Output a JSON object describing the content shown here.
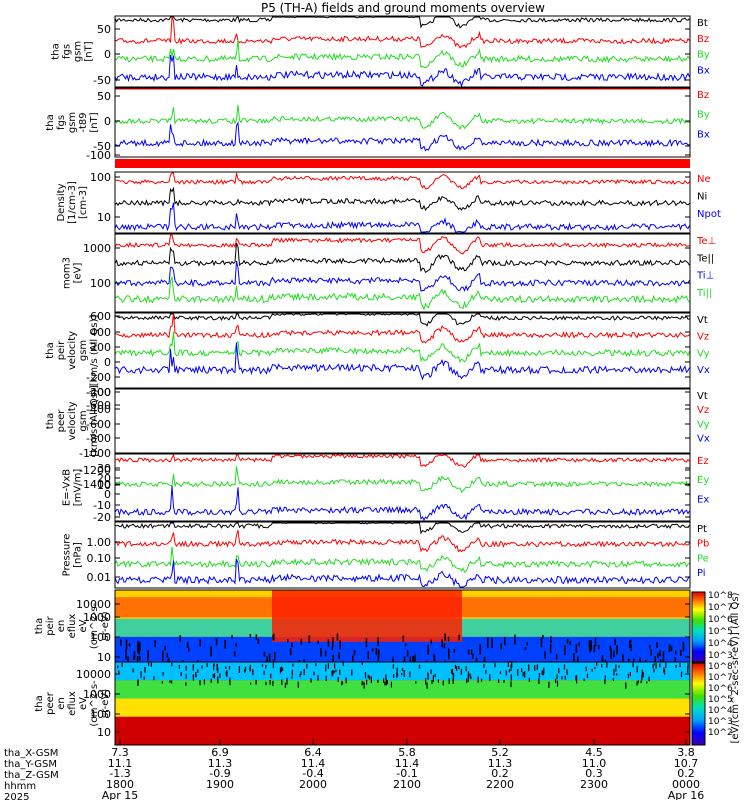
{
  "title": "P5 (TH-A) fields and ground moments overview",
  "colors": {
    "black": "#000000",
    "red": "#ff0000",
    "green": "#22dd22",
    "blue": "#0000ff"
  },
  "xaxis": {
    "hours": [
      "1800",
      "1900",
      "2000",
      "2100",
      "2200",
      "2300",
      "0000"
    ],
    "tha_X_GSM": [
      "7.3",
      "6.9",
      "6.4",
      "5.8",
      "5.2",
      "4.5",
      "3.8"
    ],
    "tha_Y_GSM": [
      "11.1",
      "11.3",
      "11.4",
      "11.4",
      "11.3",
      "11.0",
      "10.7"
    ],
    "tha_Z_GSM": [
      "-1.3",
      "-0.9",
      "-0.4",
      "-0.1",
      "0.2",
      "0.3",
      "0.2"
    ],
    "row_labels": [
      "tha_X-GSM",
      "tha_Y-GSM",
      "tha_Z-GSM",
      "hhmm",
      "2025"
    ],
    "date_start": "Apr 15",
    "date_end": "Apr 16"
  },
  "colorbar": {
    "label": "[eV/(cm^2-sec-sr-eV)] (All Qs)",
    "label2": "[eV/(cm^2-sec-sr-eV)]",
    "ticks_top": [
      "10^8",
      "10^7",
      "10^6",
      "10^5",
      "10^4",
      "10^3"
    ],
    "ticks_bottom": [
      "10^8",
      "10^7",
      "10^6",
      "10^5",
      "10^4",
      "10^3",
      "10^2"
    ]
  },
  "chart_data": [
    {
      "type": "line",
      "ylabel": [
        "tha",
        "fgs",
        "gsm",
        "[nT]"
      ],
      "ylim": [
        -50,
        70
      ],
      "yticks": [
        "50",
        "0",
        "-50"
      ],
      "series": [
        {
          "name": "Bt",
          "color": "black"
        },
        {
          "name": "Bz",
          "color": "red"
        },
        {
          "name": "By",
          "color": "green"
        },
        {
          "name": "Bx",
          "color": "blue"
        }
      ]
    },
    {
      "type": "line",
      "ylabel": [
        "tha",
        "fgs",
        "gsm",
        "-t89",
        "[nT]"
      ],
      "ylim": [
        -120,
        70
      ],
      "yticks": [
        "50",
        "0",
        "-50",
        "-100"
      ],
      "series": [
        {
          "name": "Bz",
          "color": "red"
        },
        {
          "name": "By",
          "color": "green"
        },
        {
          "name": "Bx",
          "color": "blue"
        }
      ]
    },
    {
      "type": "line",
      "ylabel": [
        "Density",
        "[1/cm-3]",
        "[cm-3]"
      ],
      "yscale": "log",
      "ylim": [
        3,
        120
      ],
      "yticks": [
        "100",
        "10"
      ],
      "series": [
        {
          "name": "Ne",
          "color": "red"
        },
        {
          "name": "Ni",
          "color": "black"
        },
        {
          "name": "Npot",
          "color": "blue"
        }
      ]
    },
    {
      "type": "line",
      "ylabel": [
        "mom3",
        "[eV]"
      ],
      "yscale": "log",
      "ylim": [
        15,
        1500
      ],
      "yticks": [
        "1000",
        "100"
      ],
      "series": [
        {
          "name": "Te⊥",
          "color": "red"
        },
        {
          "name": "Te||",
          "color": "black"
        },
        {
          "name": "Ti⊥",
          "color": "blue"
        },
        {
          "name": "Ti||",
          "color": "green"
        }
      ]
    },
    {
      "type": "line",
      "ylabel": [
        "tha",
        "peir",
        "velocity",
        "gsm",
        "[km/s (All Qs)]"
      ],
      "ylim": [
        -650,
        650
      ],
      "yticks": [
        "600",
        "400",
        "200",
        "0",
        "-200",
        "-400",
        "-600"
      ],
      "series": [
        {
          "name": "Vt",
          "color": "black"
        },
        {
          "name": "Vz",
          "color": "red"
        },
        {
          "name": "Vy",
          "color": "green"
        },
        {
          "name": "Vx",
          "color": "blue"
        }
      ]
    },
    {
      "type": "line",
      "ylabel": [
        "tha",
        "peer",
        "velocity",
        "gsm",
        "[km/s (All Qs)]"
      ],
      "ylim": [
        -1450,
        -150
      ],
      "yticks": [
        "-200",
        "-400",
        "-600",
        "-800",
        "-1000",
        "-1200",
        "-1400"
      ],
      "series": [
        {
          "name": "Vt",
          "color": "black"
        },
        {
          "name": "Vz",
          "color": "red"
        },
        {
          "name": "Vy",
          "color": "green"
        },
        {
          "name": "Vx",
          "color": "blue"
        }
      ]
    },
    {
      "type": "line",
      "ylabel": [
        "E=-VxB",
        "[mV/m]"
      ],
      "ylim": [
        -22,
        32
      ],
      "yticks": [
        "30",
        "20",
        "10",
        "0",
        "-10",
        "-20"
      ],
      "series": [
        {
          "name": "Ez",
          "color": "red"
        },
        {
          "name": "Ey",
          "color": "green"
        },
        {
          "name": "Ex",
          "color": "blue"
        }
      ]
    },
    {
      "type": "line",
      "ylabel": [
        "Pressure",
        "[nPa]"
      ],
      "yscale": "log",
      "ylim": [
        0.005,
        3
      ],
      "yticks": [
        "1.00",
        "0.10",
        "0.01"
      ],
      "series": [
        {
          "name": "Pt",
          "color": "black"
        },
        {
          "name": "Pb",
          "color": "red"
        },
        {
          "name": "Pe",
          "color": "green"
        },
        {
          "name": "Pi",
          "color": "blue"
        }
      ]
    },
    {
      "type": "heatmap",
      "ylabel": [
        "tha",
        "peir",
        "en",
        "eflux",
        "eV",
        "(cm^2-s-",
        "sr-eV)"
      ],
      "yscale": "log",
      "yticks": [
        "10000",
        "1000",
        "100",
        "10"
      ]
    },
    {
      "type": "heatmap",
      "ylabel": [
        "tha",
        "peer",
        "en",
        "eflux",
        "eV",
        "(cm^2-s-",
        "sr-eV)"
      ],
      "yscale": "log",
      "yticks": [
        "10000",
        "1000",
        "100",
        "10"
      ]
    }
  ]
}
